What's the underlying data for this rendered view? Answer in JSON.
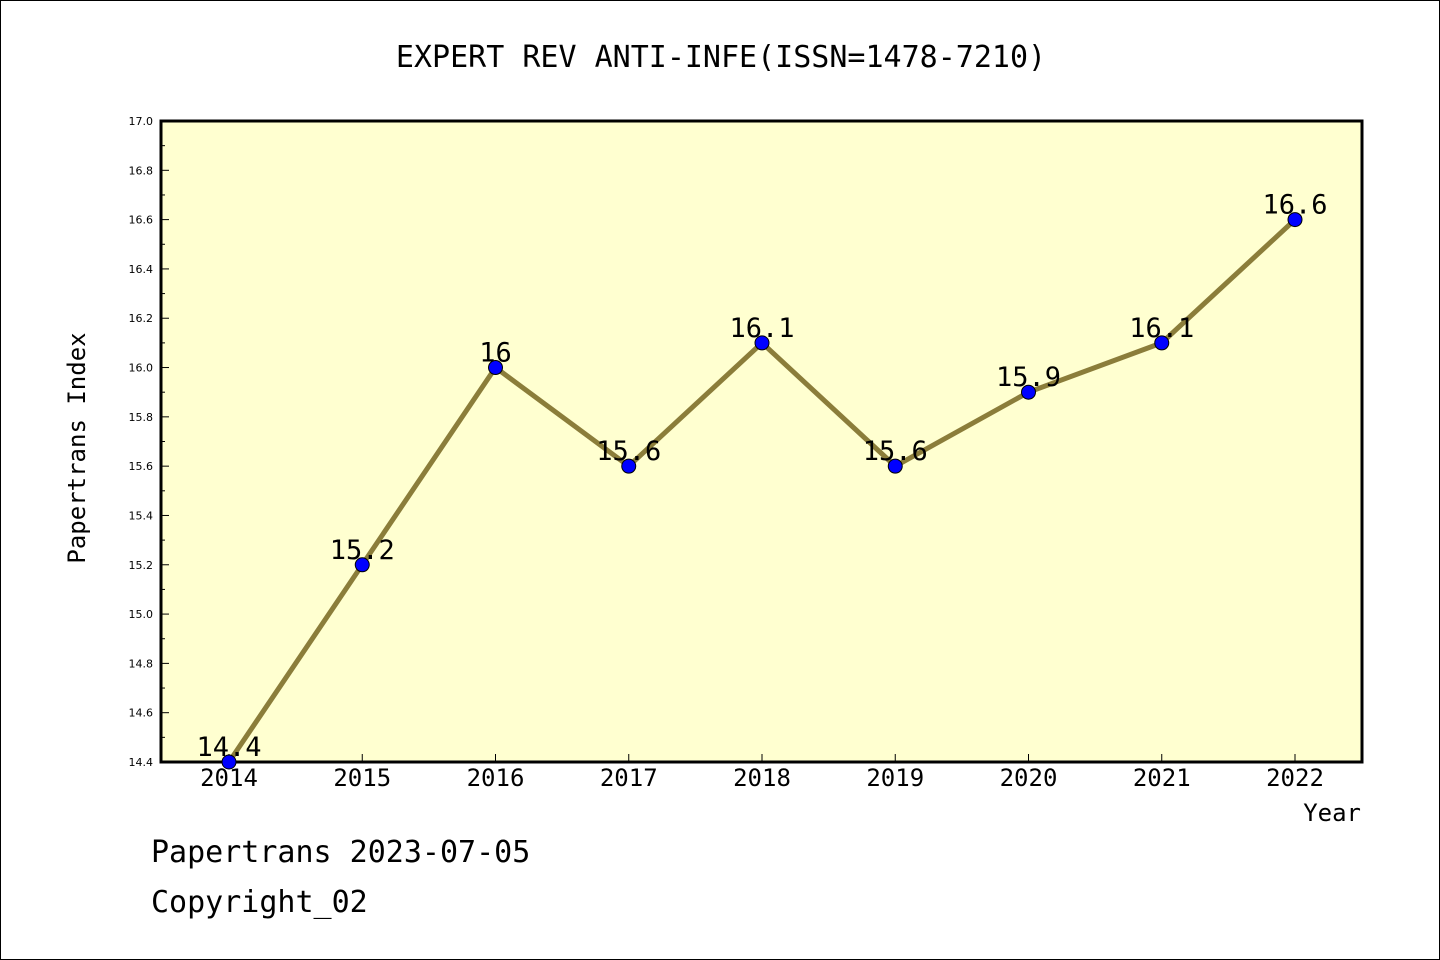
{
  "chart_data": {
    "type": "line",
    "title": "EXPERT REV ANTI-INFE(ISSN=1478-7210)",
    "xlabel": "Year",
    "ylabel": "Papertrans Index",
    "categories": [
      "2014",
      "2015",
      "2016",
      "2017",
      "2018",
      "2019",
      "2020",
      "2021",
      "2022"
    ],
    "values": [
      14.4,
      15.2,
      16.0,
      15.6,
      16.1,
      15.6,
      15.9,
      16.1,
      16.6
    ],
    "data_labels": [
      "14.4",
      "15.2",
      "16",
      "15.6",
      "16.1",
      "15.6",
      "15.9",
      "16.1",
      "16.6"
    ],
    "ylim": [
      14.4,
      17.0
    ],
    "ytick_labels": [
      "14.4",
      "14.6",
      "14.8",
      "15.0",
      "15.2",
      "15.4",
      "15.6",
      "15.8",
      "16.0",
      "16.2",
      "16.4",
      "16.6",
      "16.8",
      "17.0"
    ],
    "grid": false,
    "colors": {
      "plot_background": "#ffffd0",
      "line": "#8b7d3a",
      "marker": "#0000ff"
    }
  },
  "footer": {
    "line1": "Papertrans 2023-07-05",
    "line2": "Copyright_02"
  }
}
